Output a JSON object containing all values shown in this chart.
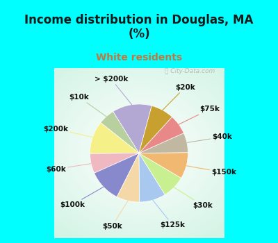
{
  "title": "Income distribution in Douglas, MA\n(%)",
  "subtitle": "White residents",
  "title_color": "#1a1a1a",
  "subtitle_color": "#c07840",
  "background_cyan": "#00FFFF",
  "watermark": "City-Data.com",
  "labels": [
    "> $200k",
    "$10k",
    "$200k",
    "$60k",
    "$100k",
    "$50k",
    "$125k",
    "$30k",
    "$150k",
    "$40k",
    "$75k",
    "$20k"
  ],
  "values": [
    12,
    5,
    10,
    6,
    10,
    7,
    8,
    7,
    8,
    6,
    6,
    7
  ],
  "colors": [
    "#b3a8d4",
    "#b8cfa0",
    "#f5f088",
    "#f0b8c0",
    "#8888cc",
    "#f5d8a8",
    "#a8c8f0",
    "#c8f090",
    "#f0b870",
    "#c0b8a0",
    "#e88888",
    "#c8a030"
  ],
  "label_fontsize": 7.5,
  "startangle": 75,
  "title_fontsize": 12,
  "subtitle_fontsize": 10
}
